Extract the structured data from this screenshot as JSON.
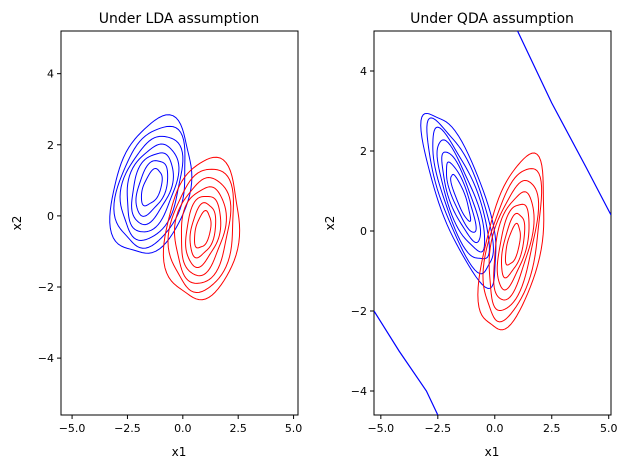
{
  "chart_data": [
    {
      "type": "contour",
      "title": "Under LDA assumption",
      "xlabel": "x1",
      "ylabel": "x2",
      "xlim": [
        -5.5,
        5.2
      ],
      "ylim": [
        -5.6,
        5.2
      ],
      "xticks": [
        -5,
        -2.5,
        0,
        2.5,
        5
      ],
      "xtick_labels": [
        "−5.0",
        "−2.5",
        "0.0",
        "2.5",
        "5.0"
      ],
      "yticks": [
        -4,
        -2,
        0,
        2,
        4
      ],
      "ytick_labels": [
        "−4",
        "−2",
        "0",
        "2",
        "4"
      ],
      "grid": false,
      "series": [
        {
          "color": "#0000ff",
          "center": [
            -1.4,
            0.8
          ],
          "rotation_deg": 50,
          "semi_axes": [
            [
              2.15,
              1.55
            ],
            [
              1.9,
              1.35
            ],
            [
              1.65,
              1.15
            ],
            [
              1.4,
              0.95
            ],
            [
              1.15,
              0.75
            ],
            [
              0.9,
              0.55
            ],
            [
              0.6,
              0.35
            ]
          ]
        },
        {
          "color": "#ff0000",
          "center": [
            0.9,
            -0.4
          ],
          "rotation_deg": 65,
          "semi_axes": [
            [
              2.05,
              1.6
            ],
            [
              1.8,
              1.38
            ],
            [
              1.55,
              1.16
            ],
            [
              1.3,
              0.94
            ],
            [
              1.05,
              0.72
            ],
            [
              0.8,
              0.52
            ],
            [
              0.55,
              0.32
            ]
          ]
        }
      ]
    },
    {
      "type": "contour",
      "title": "Under QDA assumption",
      "xlabel": "x1",
      "ylabel": "x2",
      "xlim": [
        -5.3,
        5.1
      ],
      "ylim": [
        -4.6,
        5.0
      ],
      "xticks": [
        -5,
        -2.5,
        0,
        2.5,
        5
      ],
      "xtick_labels": [
        "−5.0",
        "−2.5",
        "0.0",
        "2.5",
        "5.0"
      ],
      "yticks": [
        -4,
        -2,
        0,
        2,
        4
      ],
      "ytick_labels": [
        "−4",
        "−2",
        "0",
        "2",
        "4"
      ],
      "grid": false,
      "series": [
        {
          "color": "#0000ff",
          "center": [
            -1.5,
            0.85
          ],
          "rotation_deg": 125,
          "semi_axes": [
            [
              2.55,
              0.9
            ],
            [
              2.25,
              0.78
            ],
            [
              1.95,
              0.66
            ],
            [
              1.65,
              0.54
            ],
            [
              1.35,
              0.42
            ],
            [
              1.05,
              0.3
            ],
            [
              0.7,
              0.18
            ]
          ]
        },
        {
          "color": "#ff0000",
          "center": [
            0.8,
            -0.35
          ],
          "rotation_deg": 65,
          "semi_axes": [
            [
              2.35,
              1.15
            ],
            [
              2.05,
              1.0
            ],
            [
              1.75,
              0.85
            ],
            [
              1.45,
              0.7
            ],
            [
              1.15,
              0.55
            ],
            [
              0.85,
              0.4
            ],
            [
              0.55,
              0.25
            ]
          ]
        }
      ],
      "boundaries": [
        {
          "color": "#0000ff",
          "points": [
            [
              1.0,
              5.0
            ],
            [
              2.5,
              3.2
            ],
            [
              4.0,
              1.6
            ],
            [
              5.1,
              0.4
            ]
          ]
        },
        {
          "color": "#0000ff",
          "points": [
            [
              -5.3,
              -2.0
            ],
            [
              -4.2,
              -3.0
            ],
            [
              -3.0,
              -4.0
            ],
            [
              -2.5,
              -4.6
            ]
          ]
        }
      ]
    }
  ]
}
